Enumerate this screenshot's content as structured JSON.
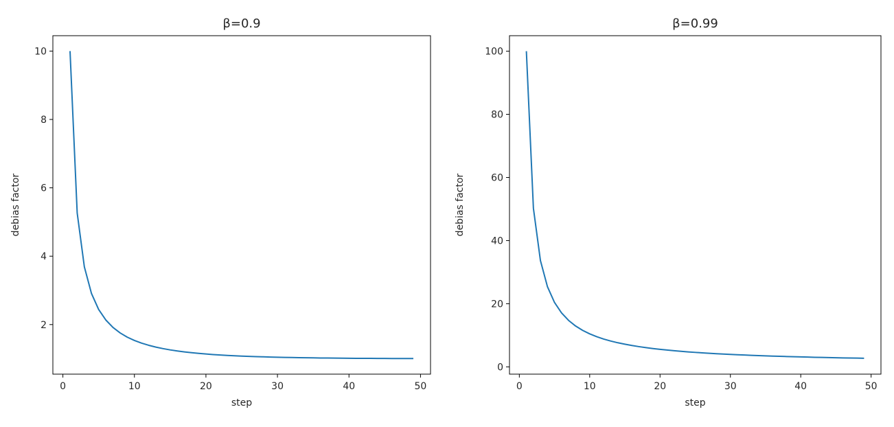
{
  "chart_data": [
    {
      "type": "line",
      "title": "β=0.9",
      "xlabel": "step",
      "ylabel": "debias factor",
      "xlim": [
        -1.4,
        51.4
      ],
      "ylim": [
        0.55,
        10.45
      ],
      "xticks": [
        0,
        10,
        20,
        30,
        40,
        50
      ],
      "yticks": [
        2,
        4,
        6,
        8,
        10
      ],
      "grid": false,
      "line_color": "#1f77b4",
      "series": [
        {
          "x": [
            1,
            2,
            3,
            4,
            5,
            6,
            7,
            8,
            9,
            10,
            11,
            12,
            13,
            14,
            15,
            16,
            17,
            18,
            19,
            20,
            21,
            22,
            23,
            24,
            25,
            26,
            27,
            28,
            29,
            30,
            31,
            32,
            33,
            34,
            35,
            36,
            37,
            38,
            39,
            40,
            41,
            42,
            43,
            44,
            45,
            46,
            47,
            48,
            49
          ],
          "values": [
            10,
            5.263,
            3.69,
            2.908,
            2.442,
            2.134,
            1.917,
            1.756,
            1.632,
            1.535,
            1.457,
            1.394,
            1.341,
            1.297,
            1.259,
            1.228,
            1.201,
            1.178,
            1.157,
            1.139,
            1.123,
            1.11,
            1.098,
            1.087,
            1.078,
            1.07,
            1.063,
            1.056,
            1.05,
            1.045,
            1.04,
            1.036,
            1.032,
            1.029,
            1.026,
            1.023,
            1.021,
            1.019,
            1.017,
            1.015,
            1.013,
            1.012,
            1.011,
            1.01,
            1.009,
            1.008,
            1.007,
            1.006,
            1.006
          ]
        }
      ]
    },
    {
      "type": "line",
      "title": "β=0.99",
      "xlabel": "step",
      "ylabel": "debias factor",
      "xlim": [
        -1.4,
        51.4
      ],
      "ylim": [
        -2.3,
        104.9
      ],
      "xticks": [
        0,
        10,
        20,
        30,
        40,
        50
      ],
      "yticks": [
        0,
        20,
        40,
        60,
        80,
        100
      ],
      "grid": false,
      "line_color": "#1f77b4",
      "series": [
        {
          "x": [
            1,
            2,
            3,
            4,
            5,
            6,
            7,
            8,
            9,
            10,
            11,
            12,
            13,
            14,
            15,
            16,
            17,
            18,
            19,
            20,
            21,
            22,
            23,
            24,
            25,
            26,
            27,
            28,
            29,
            30,
            31,
            32,
            33,
            34,
            35,
            36,
            37,
            38,
            39,
            40,
            41,
            42,
            43,
            44,
            45,
            46,
            47,
            48,
            49
          ],
          "values": [
            100,
            50.25,
            33.67,
            25.38,
            20.4,
            17.09,
            14.72,
            12.94,
            11.56,
            10.46,
            9.56,
            8.81,
            8.18,
            7.64,
            7.18,
            6.77,
            6.41,
            6.09,
            5.81,
            5.56,
            5.33,
            5.12,
            4.93,
            4.75,
            4.59,
            4.45,
            4.31,
            4.18,
            4.06,
            3.95,
            3.85,
            3.75,
            3.66,
            3.58,
            3.5,
            3.42,
            3.35,
            3.28,
            3.22,
            3.16,
            3.1,
            3.04,
            2.99,
            2.94,
            2.89,
            2.85,
            2.81,
            2.77,
            2.73
          ]
        }
      ]
    }
  ]
}
